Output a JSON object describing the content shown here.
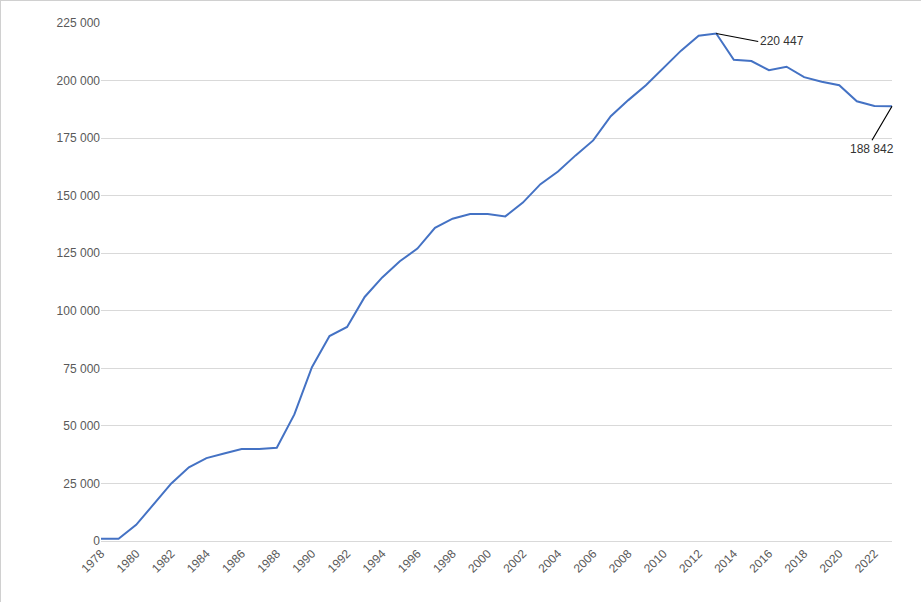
{
  "chart_data": {
    "type": "line",
    "x": [
      1978,
      1979,
      1980,
      1981,
      1982,
      1983,
      1984,
      1985,
      1986,
      1987,
      1988,
      1989,
      1990,
      1991,
      1992,
      1993,
      1994,
      1995,
      1996,
      1997,
      1998,
      1999,
      2000,
      2001,
      2002,
      2003,
      2004,
      2005,
      2006,
      2007,
      2008,
      2009,
      2010,
      2011,
      2012,
      2013,
      2014,
      2015,
      2016,
      2017,
      2018,
      2019,
      2020,
      2021,
      2022,
      2023
    ],
    "values": [
      1000,
      1000,
      7000,
      16000,
      25000,
      32000,
      36000,
      38000,
      40000,
      40000,
      40500,
      55000,
      75500,
      89000,
      93000,
      106000,
      114500,
      121500,
      127000,
      136000,
      140000,
      142000,
      142000,
      141000,
      147000,
      155000,
      160500,
      167500,
      174000,
      184500,
      191500,
      198000,
      205500,
      213000,
      219500,
      220447,
      209000,
      208500,
      204500,
      206000,
      201500,
      199500,
      198000,
      191000,
      189000,
      188842
    ],
    "color": "#4472c4",
    "xlim": [
      1978,
      2023
    ],
    "xticks": [
      1978,
      1980,
      1982,
      1984,
      1986,
      1988,
      1990,
      1992,
      1994,
      1996,
      1998,
      2000,
      2002,
      2004,
      2006,
      2008,
      2010,
      2012,
      2014,
      2016,
      2018,
      2020,
      2022
    ],
    "ylim": [
      0,
      225000
    ],
    "yticks": [
      0,
      {
        "value": 25000,
        "label": "25 000"
      },
      {
        "value": 50000,
        "label": "50 000"
      },
      {
        "value": 75000,
        "label": "75 000"
      },
      {
        "value": 100000,
        "label": "100 000"
      },
      {
        "value": 125000,
        "label": "125 000"
      },
      {
        "value": 150000,
        "label": "150 000"
      },
      {
        "value": 175000,
        "label": "175 000"
      },
      {
        "value": 200000,
        "label": "200 000"
      },
      {
        "value": 225000,
        "label": "225 000"
      }
    ],
    "grid": true,
    "annotations": [
      {
        "x": 2013,
        "text": "220 447"
      },
      {
        "x": 2023,
        "text": "188 842"
      }
    ]
  }
}
